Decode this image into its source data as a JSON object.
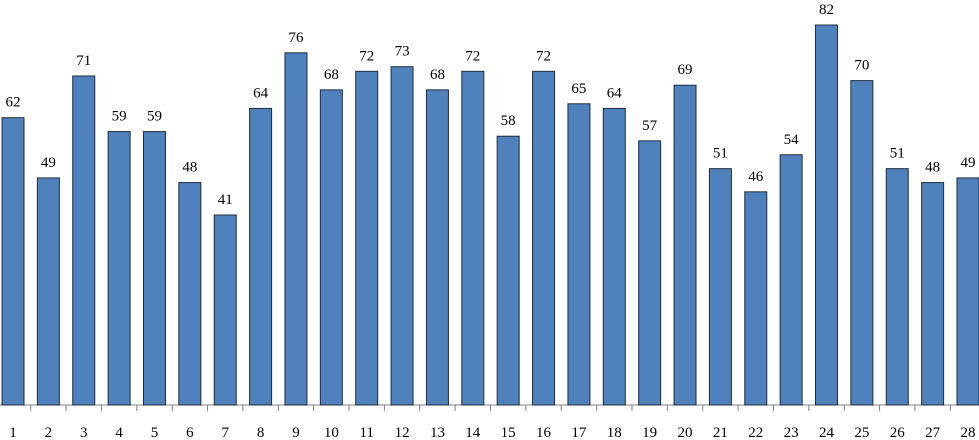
{
  "chart_data": {
    "type": "bar",
    "categories": [
      1,
      2,
      3,
      4,
      5,
      6,
      7,
      8,
      9,
      10,
      11,
      12,
      13,
      14,
      15,
      16,
      17,
      18,
      19,
      20,
      21,
      22,
      23,
      24,
      25,
      26,
      27,
      28
    ],
    "values": [
      62,
      49,
      71,
      59,
      59,
      48,
      41,
      64,
      76,
      68,
      72,
      73,
      68,
      72,
      58,
      72,
      65,
      64,
      57,
      69,
      51,
      46,
      54,
      82,
      70,
      51,
      48,
      49
    ],
    "color": "#4f81bd"
  }
}
